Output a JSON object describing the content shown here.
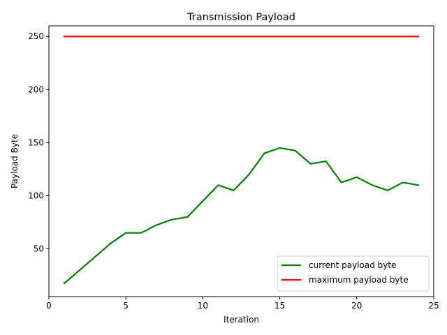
{
  "chart_data": {
    "type": "line",
    "title": "Transmission Payload",
    "xlabel": "Iteration",
    "ylabel": "Payload Byte",
    "xlim": [
      0,
      25
    ],
    "ylim": [
      5,
      260
    ],
    "xticks": [
      0,
      5,
      10,
      15,
      20,
      25
    ],
    "yticks": [
      50,
      100,
      150,
      200,
      250
    ],
    "grid": false,
    "legend_position": "lower-right",
    "series": [
      {
        "name": "current payload byte",
        "color": "#008000",
        "x": [
          1,
          2,
          3,
          4,
          5,
          6,
          7,
          8,
          9,
          10,
          11,
          12,
          13,
          14,
          15,
          16,
          17,
          18,
          19,
          20,
          21,
          22,
          23,
          24
        ],
        "y": [
          17.5,
          30,
          42.5,
          55,
          65,
          65,
          72.5,
          77.5,
          80,
          95,
          110,
          105,
          120,
          140,
          145,
          142.5,
          130,
          132.5,
          112.5,
          117.5,
          110,
          105,
          112.5,
          110
        ]
      },
      {
        "name": "maximum payload byte",
        "color": "#ff0000",
        "x": [
          1,
          2,
          3,
          4,
          5,
          6,
          7,
          8,
          9,
          10,
          11,
          12,
          13,
          14,
          15,
          16,
          17,
          18,
          19,
          20,
          21,
          22,
          23,
          24
        ],
        "y": [
          250,
          250,
          250,
          250,
          250,
          250,
          250,
          250,
          250,
          250,
          250,
          250,
          250,
          250,
          250,
          250,
          250,
          250,
          250,
          250,
          250,
          250,
          250,
          250
        ]
      }
    ]
  }
}
